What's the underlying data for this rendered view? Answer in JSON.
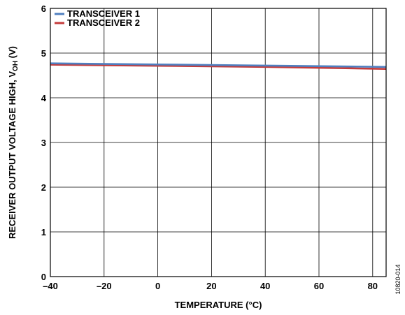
{
  "chart_data": {
    "type": "line",
    "xlabel": "TEMPERATURE (°C)",
    "ylabel": {
      "main": "RECEIVER OUTPUT VOLTAGE HIGH, V",
      "sub": "OH",
      "tail": " (V)"
    },
    "xlim": [
      -40,
      85
    ],
    "ylim": [
      0,
      6
    ],
    "x_ticks": [
      -40,
      -20,
      0,
      20,
      40,
      60,
      80
    ],
    "x_tick_labels": [
      "–40",
      "–20",
      "0",
      "20",
      "40",
      "60",
      "80"
    ],
    "y_ticks": [
      0,
      1,
      2,
      3,
      4,
      5,
      6
    ],
    "y_tick_labels": [
      "0",
      "1",
      "2",
      "3",
      "4",
      "5",
      "6"
    ],
    "grid": true,
    "legend_position": "top-left",
    "series": [
      {
        "name": "TRANSCEIVER 1",
        "color": "#4f7fc0",
        "x": [
          -40,
          0,
          40,
          85
        ],
        "y": [
          4.77,
          4.745,
          4.72,
          4.69
        ]
      },
      {
        "name": "TRANSCEIVER 2",
        "color": "#c43b3b",
        "x": [
          -40,
          0,
          40,
          85
        ],
        "y": [
          4.74,
          4.715,
          4.69,
          4.645
        ]
      }
    ]
  },
  "figure_id": "10820-014"
}
